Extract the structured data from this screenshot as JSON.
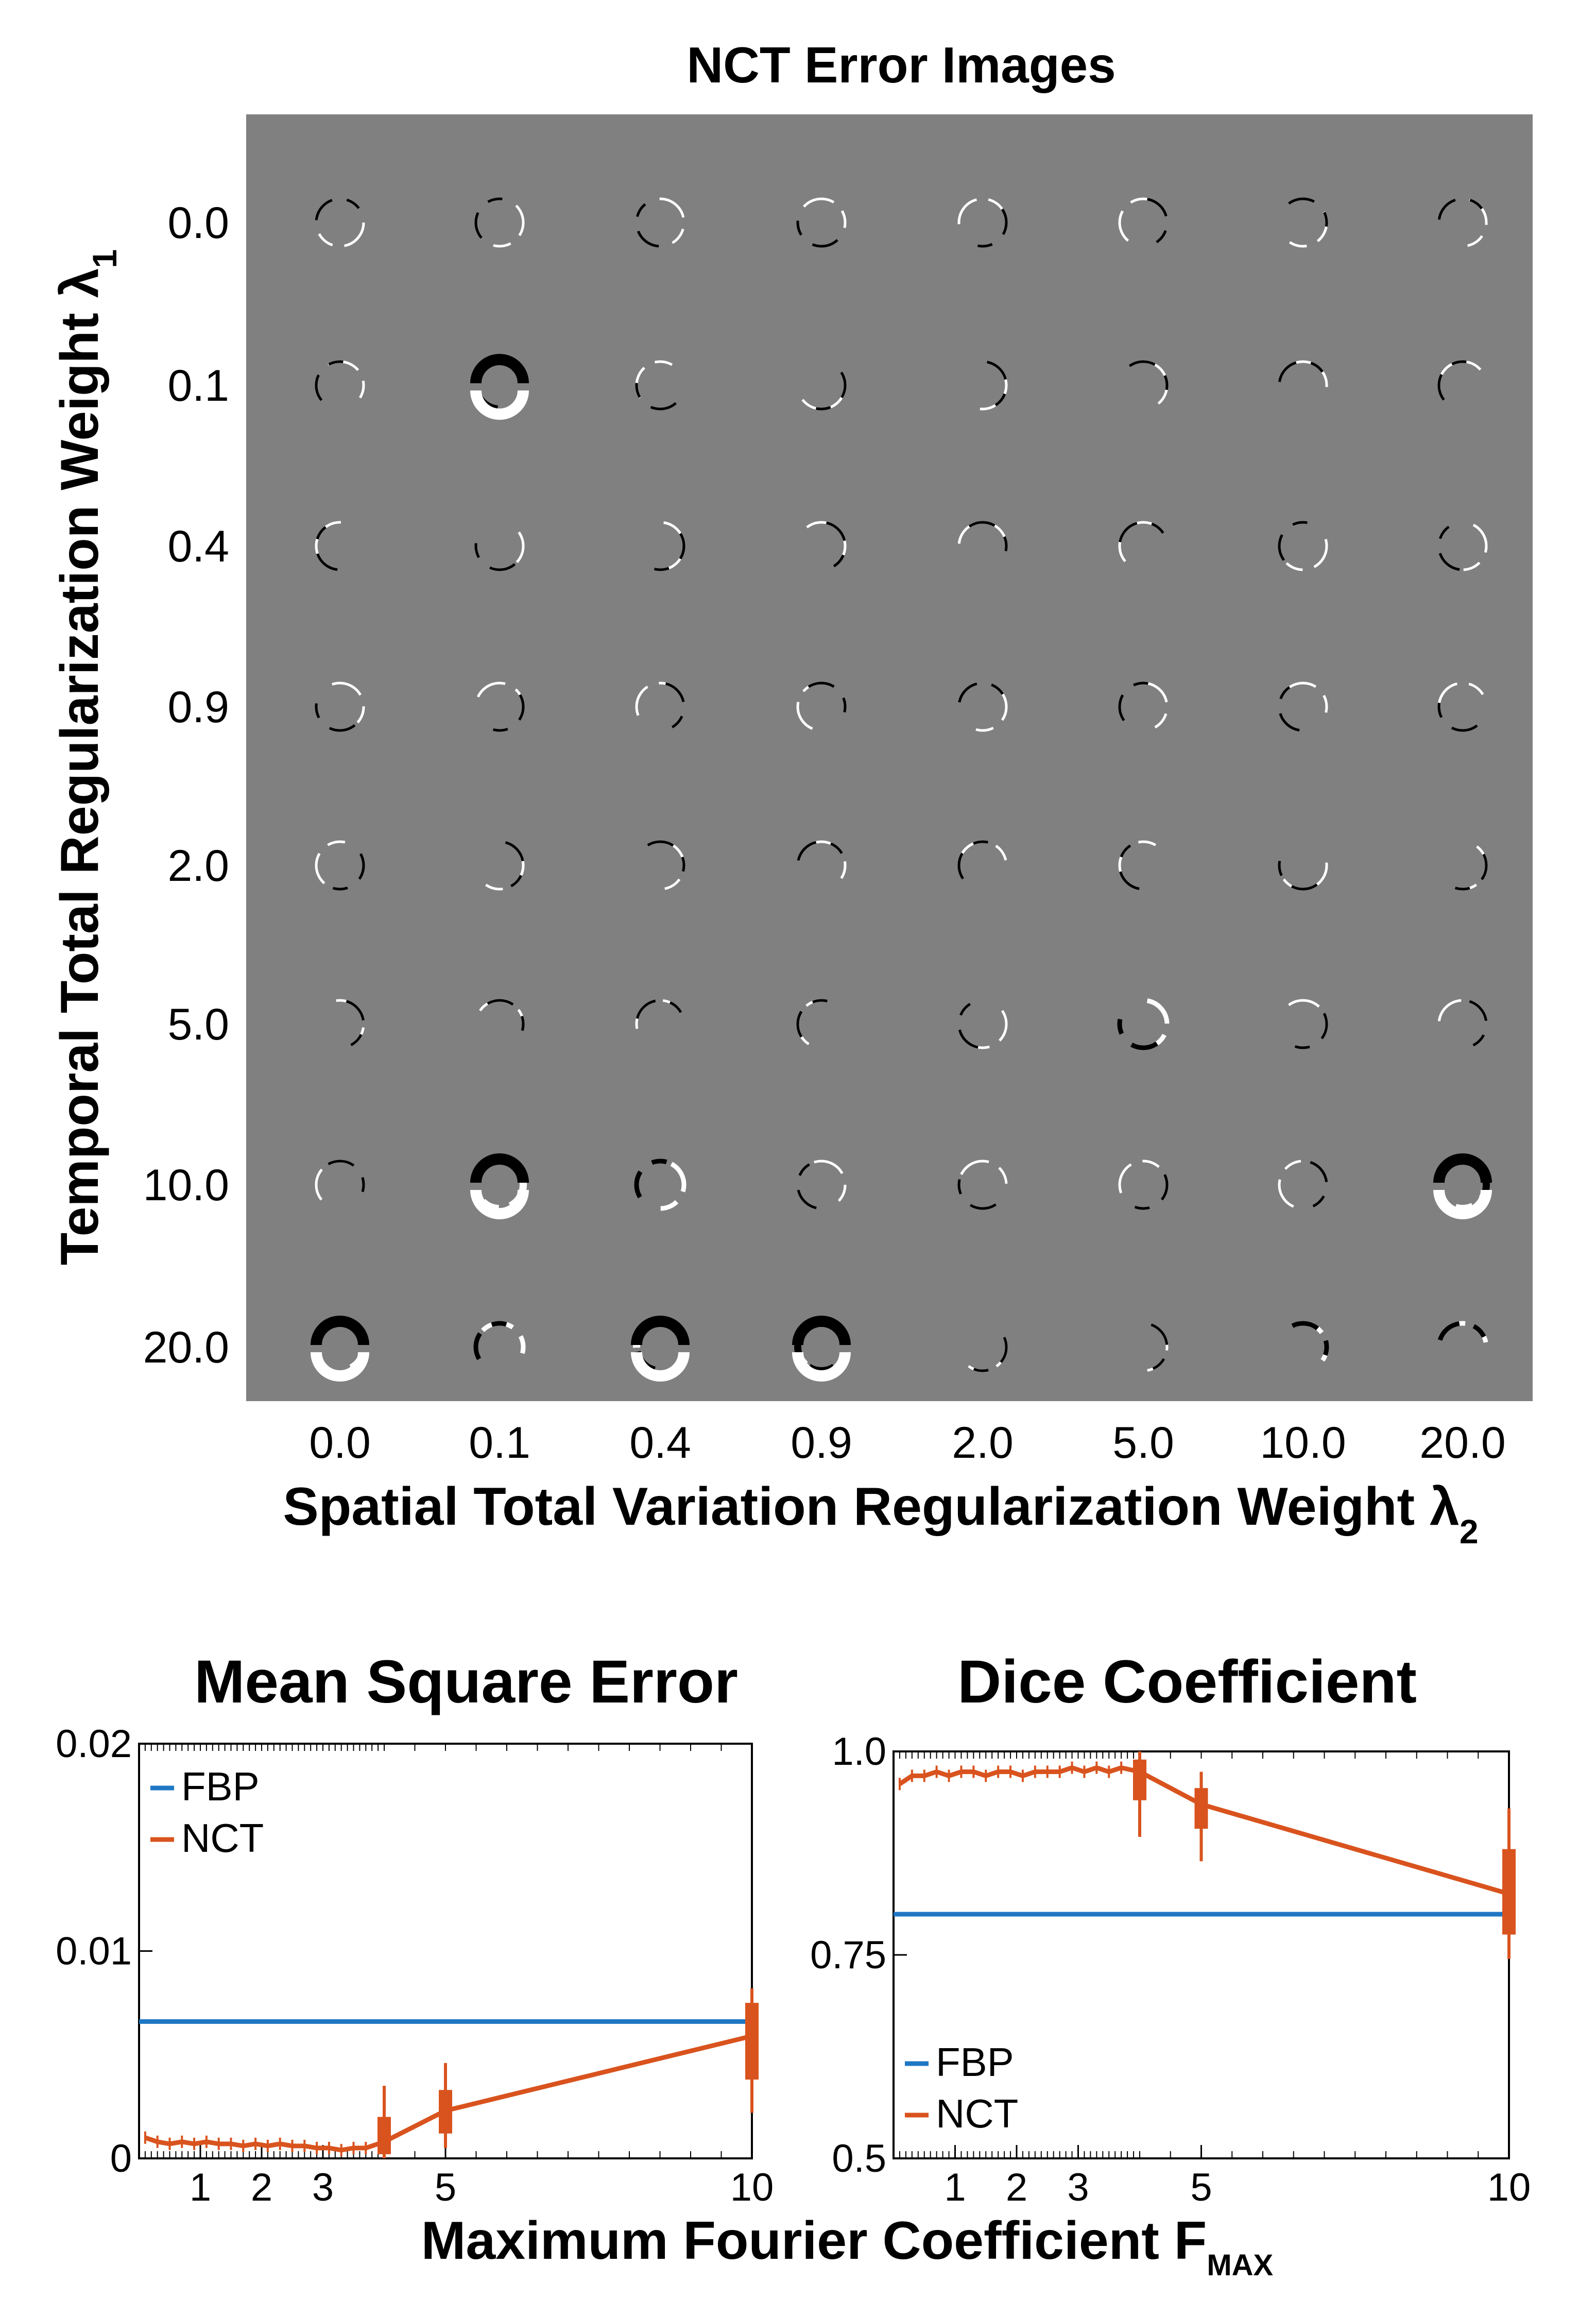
{
  "chart_data": [
    {
      "type": "heatmap",
      "title": "NCT Error Images",
      "xlabel": "Spatial Total Variation Regularization Weight λ",
      "xlabel_sub": "2",
      "ylabel": "Temporal Total Regularization Weight λ",
      "ylabel_sub": "1",
      "x_tick_labels": [
        "0.0",
        "0.1",
        "0.4",
        "0.9",
        "2.0",
        "5.0",
        "10.0",
        "20.0"
      ],
      "y_tick_labels": [
        "0.0",
        "0.1",
        "0.4",
        "0.9",
        "2.0",
        "5.0",
        "10.0",
        "20.0"
      ],
      "background_color": "#808080",
      "error_severity": [
        [
          1,
          1,
          1,
          1,
          1,
          1,
          1,
          1
        ],
        [
          1,
          3,
          1,
          1,
          1,
          1,
          1,
          1
        ],
        [
          1,
          1,
          1,
          1,
          1,
          1,
          1,
          1
        ],
        [
          1,
          1,
          1,
          1,
          1,
          1,
          1,
          1
        ],
        [
          1,
          1,
          1,
          1,
          1,
          1,
          1,
          1
        ],
        [
          1,
          1,
          1,
          1,
          1,
          2,
          1,
          1
        ],
        [
          1,
          3,
          2,
          1,
          1,
          1,
          1,
          3
        ],
        [
          3,
          2,
          3,
          3,
          1,
          1,
          2,
          2
        ]
      ]
    },
    {
      "type": "line",
      "title": "Mean Square Error",
      "xlabel": "",
      "ylabel": "",
      "xlim": [
        0,
        10
      ],
      "ylim": [
        0,
        0.02
      ],
      "x_ticks": [
        1,
        2,
        3,
        5,
        10
      ],
      "x_tick_labels": [
        "1",
        "2",
        "3",
        "5",
        "10"
      ],
      "y_ticks": [
        0,
        0.01,
        0.02
      ],
      "y_tick_labels": [
        "0",
        "0.01",
        "0.02"
      ],
      "legend_position": "top-left",
      "series": [
        {
          "name": "FBP",
          "color": "#1f77c4",
          "x": [
            0,
            10
          ],
          "y": [
            0.0066,
            0.0066
          ]
        },
        {
          "name": "NCT",
          "color": "#d9531e",
          "x": [
            0.1,
            0.3,
            0.5,
            0.7,
            0.9,
            1.1,
            1.3,
            1.5,
            1.7,
            1.9,
            2.1,
            2.3,
            2.5,
            2.7,
            2.9,
            3.1,
            3.3,
            3.5,
            3.7,
            4.0,
            5.0,
            10.0
          ],
          "y": [
            0.001,
            0.0008,
            0.0007,
            0.0008,
            0.0007,
            0.0008,
            0.0007,
            0.0007,
            0.0006,
            0.0007,
            0.0006,
            0.0007,
            0.0006,
            0.0006,
            0.0005,
            0.0005,
            0.0004,
            0.0005,
            0.0005,
            0.0008,
            0.0023,
            0.0059
          ],
          "box_x": [
            4.0,
            5.0,
            10.0
          ],
          "box_low": [
            0.0002,
            0.0012,
            0.0038
          ],
          "box_high": [
            0.002,
            0.0033,
            0.0075
          ],
          "whisker_low": [
            0.0,
            0.0005,
            0.0022
          ],
          "whisker_high": [
            0.0035,
            0.0046,
            0.0082
          ]
        }
      ]
    },
    {
      "type": "line",
      "title": "Dice Coefficient",
      "xlabel": "",
      "ylabel": "",
      "xlim": [
        0,
        10
      ],
      "ylim": [
        0.5,
        1.0
      ],
      "x_ticks": [
        1,
        2,
        3,
        5,
        10
      ],
      "x_tick_labels": [
        "1",
        "2",
        "3",
        "5",
        "10"
      ],
      "y_ticks": [
        0.5,
        0.75,
        1.0
      ],
      "y_tick_labels": [
        "0.5",
        "0.75",
        "1.0"
      ],
      "legend_position": "bottom-left",
      "series": [
        {
          "name": "FBP",
          "color": "#1f77c4",
          "x": [
            0,
            10
          ],
          "y": [
            0.8,
            0.8
          ]
        },
        {
          "name": "NCT",
          "color": "#d9531e",
          "x": [
            0.1,
            0.3,
            0.5,
            0.7,
            0.9,
            1.1,
            1.3,
            1.5,
            1.7,
            1.9,
            2.1,
            2.3,
            2.5,
            2.7,
            2.9,
            3.1,
            3.3,
            3.5,
            3.7,
            4.0,
            5.0,
            10.0
          ],
          "y": [
            0.96,
            0.97,
            0.97,
            0.975,
            0.97,
            0.975,
            0.975,
            0.97,
            0.975,
            0.975,
            0.97,
            0.975,
            0.975,
            0.975,
            0.98,
            0.975,
            0.98,
            0.975,
            0.98,
            0.975,
            0.935,
            0.825
          ],
          "box_x": [
            4.0,
            5.0,
            10.0
          ],
          "box_low": [
            0.94,
            0.905,
            0.775
          ],
          "box_high": [
            0.99,
            0.955,
            0.88
          ],
          "whisker_low": [
            0.895,
            0.865,
            0.745
          ],
          "whisker_high": [
            1.0,
            0.975,
            0.93
          ]
        }
      ]
    }
  ],
  "shared_xlabel": "Maximum Fourier Coefficient F",
  "shared_xlabel_sub": "MAX"
}
